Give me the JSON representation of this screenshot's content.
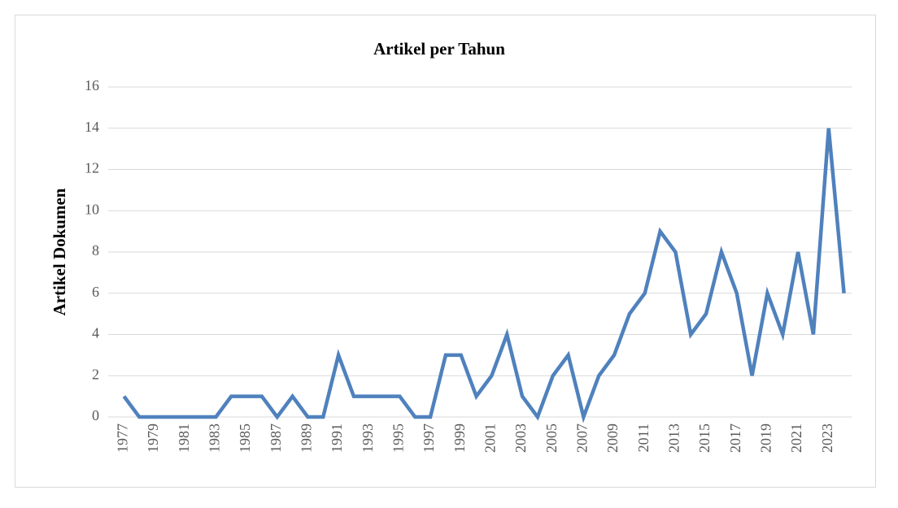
{
  "chart_data": {
    "type": "line",
    "title": "Artikel per Tahun",
    "y_label": "Artikel  Dokumen",
    "categories": [
      "1977",
      null,
      "1979",
      null,
      "1981",
      null,
      "1983",
      null,
      "1985",
      null,
      "1987",
      null,
      "1989",
      null,
      "1991",
      null,
      "1993",
      null,
      "1995",
      null,
      "1997",
      null,
      "1999",
      null,
      "2001",
      null,
      "2003",
      null,
      "2005",
      null,
      "2007",
      null,
      "2009",
      null,
      "2011",
      null,
      "2013",
      null,
      "2015",
      null,
      "2017",
      null,
      "2019",
      null,
      "2021",
      null,
      "2023",
      null
    ],
    "values": [
      1,
      0,
      0,
      0,
      0,
      0,
      0,
      1,
      1,
      1,
      0,
      1,
      0,
      0,
      3,
      1,
      1,
      1,
      1,
      0,
      0,
      3,
      3,
      1,
      2,
      4,
      1,
      0,
      2,
      3,
      0,
      2,
      3,
      5,
      6,
      9,
      8,
      4,
      5,
      8,
      6,
      2,
      6,
      4,
      8,
      4,
      14,
      6
    ],
    "color": "#4f81bd",
    "ylim": [
      0,
      16
    ],
    "yticks": [
      0,
      2,
      4,
      6,
      8,
      10,
      12,
      14,
      16
    ],
    "grid": true
  }
}
